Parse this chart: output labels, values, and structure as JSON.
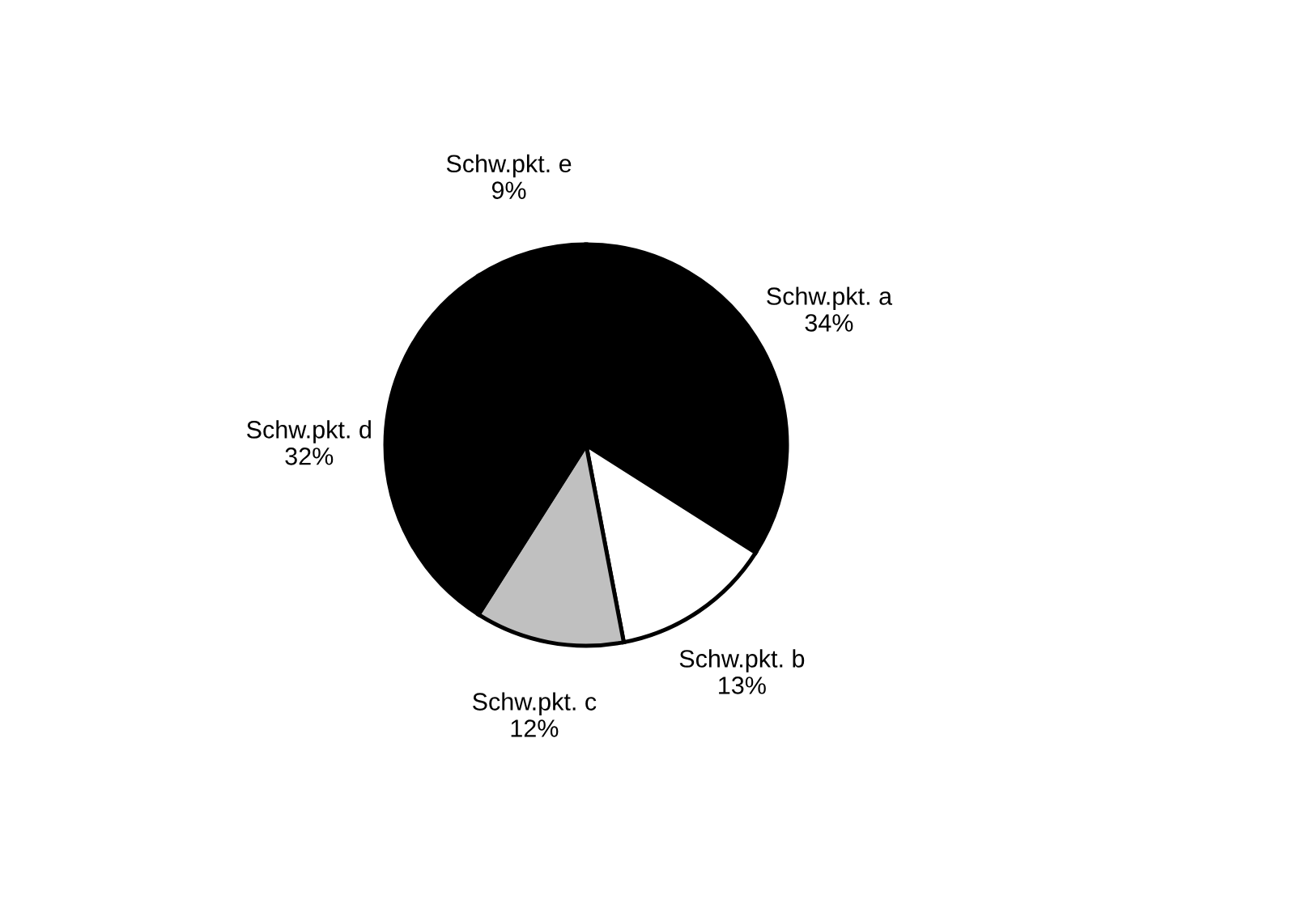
{
  "chart_data": {
    "type": "pie",
    "categories": [
      "Schw.pkt. a",
      "Schw.pkt. b",
      "Schw.pkt. c",
      "Schw.pkt. d",
      "Schw.pkt. e"
    ],
    "values": [
      34,
      13,
      12,
      32,
      9
    ],
    "value_labels": [
      "34%",
      "13%",
      "12%",
      "32%",
      "9%"
    ],
    "colors": [
      "#000000",
      "#ffffff",
      "#c0c0c0",
      "#000000",
      "#000000"
    ],
    "legend": false
  }
}
